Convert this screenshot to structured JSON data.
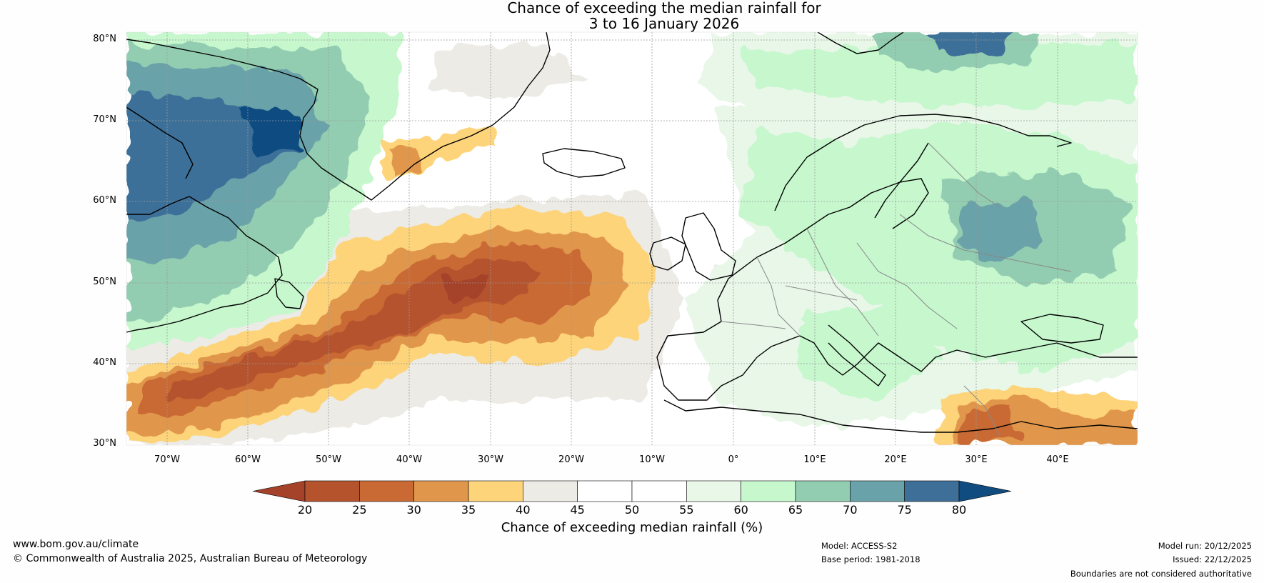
{
  "title": {
    "line1": "Chance of exceeding the median rainfall for",
    "line2": "3 to 16 January 2026"
  },
  "map": {
    "lon_range": [
      -75,
      50
    ],
    "lat_range": [
      30,
      81
    ],
    "lat_ticks": [
      "80°N",
      "70°N",
      "60°N",
      "50°N",
      "40°N",
      "30°N"
    ],
    "lon_ticks": [
      "70°W",
      "60°W",
      "50°W",
      "40°W",
      "30°W",
      "20°W",
      "10°W",
      "0°",
      "10°E",
      "20°E",
      "30°E",
      "40°E"
    ],
    "ocean_color": "#ffffff",
    "coast_color": "#000000",
    "border_color": "#888888"
  },
  "colorbar": {
    "bounds": [
      20,
      25,
      30,
      35,
      40,
      45,
      50,
      55,
      60,
      65,
      70,
      75,
      80
    ],
    "colors": [
      "#a5432a",
      "#b5532d",
      "#c96a34",
      "#e1974b",
      "#fdd47a",
      "#ecebe6",
      "#ffffff",
      "#ffffff",
      "#e8f7e8",
      "#c6f7cd",
      "#93cdb1",
      "#6aa2a9",
      "#3e6f98",
      "#114c80"
    ],
    "label": "Chance of exceeding median rainfall (%)"
  },
  "footer": {
    "website": "www.bom.gov.au/climate",
    "copyright": "© Commonwealth of Australia 2025, Australian Bureau of Meteorology",
    "model": "Model: ACCESS-S2",
    "base_period": "Base period: 1981-2018",
    "model_run": "Model run: 20/12/2025",
    "issued": "Issued: 22/12/2025",
    "disclaimer": "Boundaries are not considered authoritative"
  }
}
